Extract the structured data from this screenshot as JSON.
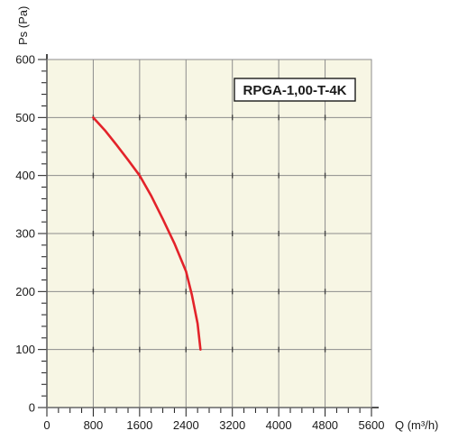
{
  "chart_data": {
    "type": "line",
    "ylabel": "Ps (Pa)",
    "xlabel": "Q (m³/h)",
    "xlim": [
      0,
      5600
    ],
    "ylim": [
      0,
      600
    ],
    "x_ticks": [
      0,
      800,
      1600,
      2400,
      3200,
      4000,
      4800,
      5600
    ],
    "y_ticks": [
      0,
      100,
      200,
      300,
      400,
      500,
      600
    ],
    "grid": true,
    "annotation": "RPGA-1,00-T-4K",
    "series": [
      {
        "x": [
          800,
          1000,
          1200,
          1400,
          1600,
          1800,
          2000,
          2200,
          2400,
          2500,
          2600,
          2650
        ],
        "y": [
          500,
          478,
          453,
          427,
          400,
          365,
          325,
          283,
          235,
          195,
          145,
          100
        ]
      }
    ]
  },
  "colors": {
    "background": "#f7f6e4",
    "grid": "#8c8c8c",
    "curve": "#e3232a",
    "axis": "#1a1a1a"
  }
}
